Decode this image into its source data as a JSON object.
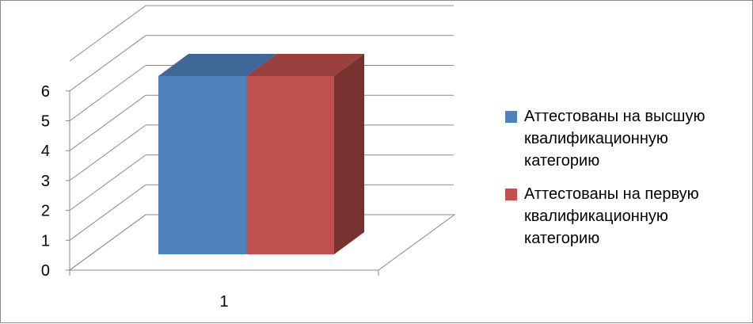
{
  "chart_data": {
    "type": "bar",
    "subtype": "3d-clustered-column",
    "categories": [
      "1"
    ],
    "series": [
      {
        "name": "Аттестованы на высшую квалификационную категорию",
        "values": [
          6
        ],
        "color": "#4F81BD"
      },
      {
        "name": "Аттестованы на первую квалификационную категорию",
        "values": [
          6
        ],
        "color": "#C0504D"
      }
    ],
    "y_ticks": [
      "0",
      "1",
      "2",
      "3",
      "4",
      "5",
      "6"
    ],
    "ylim": [
      0,
      6
    ],
    "grid": true,
    "legend_position": "right"
  }
}
